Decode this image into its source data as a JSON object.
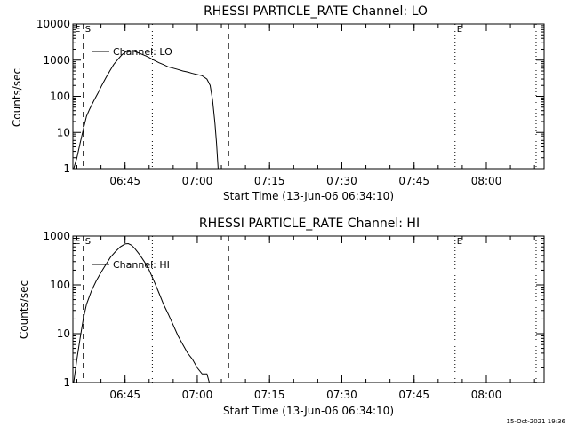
{
  "footer_text": "15-Oct-2021 19:36",
  "chart_data": [
    {
      "type": "line",
      "title": "RHESSI PARTICLE_RATE Channel: LO",
      "xlabel": "Start Time (13-Jun-06 06:34:10)",
      "ylabel": "Counts/sec",
      "yscale": "log",
      "xlim": [
        "06:34:10",
        "08:12:00"
      ],
      "ylim": [
        1,
        10000
      ],
      "x_tick_labels": [
        "06:45",
        "07:00",
        "07:15",
        "07:30",
        "07:45",
        "08:00"
      ],
      "y_tick_labels": [
        "1",
        "10",
        "100",
        "1000",
        "10000"
      ],
      "legend": "Channel: LO",
      "marker_labels": [
        "E",
        "S",
        "E"
      ],
      "markers": [
        {
          "kind": "dotted",
          "time": "06:34:10",
          "label": "E"
        },
        {
          "kind": "dashed",
          "time": "06:36:20",
          "label": "S"
        },
        {
          "kind": "dotted",
          "time": "06:50:40"
        },
        {
          "kind": "dashed",
          "time": "07:06:30"
        },
        {
          "kind": "dotted",
          "time": "07:53:30",
          "label": "E"
        },
        {
          "kind": "dotted",
          "time": "08:10:20"
        }
      ],
      "series": [
        {
          "name": "Channel: LO",
          "x": [
            "06:34:20",
            "06:35:00",
            "06:35:40",
            "06:36:20",
            "06:37:00",
            "06:37:40",
            "06:38:30",
            "06:39:20",
            "06:40:10",
            "06:41:00",
            "06:41:50",
            "06:42:40",
            "06:43:30",
            "06:44:20",
            "06:45:10",
            "06:46:00",
            "06:46:50",
            "06:47:40",
            "06:48:30",
            "06:49:20",
            "06:50:10",
            "06:51:00",
            "06:52:00",
            "06:53:00",
            "06:54:00",
            "06:55:00",
            "06:56:00",
            "06:57:00",
            "06:58:00",
            "06:59:00",
            "07:00:00",
            "07:01:00",
            "07:02:00",
            "07:02:40",
            "07:03:10",
            "07:03:40",
            "07:04:00",
            "07:04:20"
          ],
          "y": [
            1,
            2,
            5,
            12,
            28,
            45,
            75,
            120,
            200,
            320,
            500,
            760,
            1050,
            1400,
            1700,
            1800,
            1750,
            1600,
            1450,
            1300,
            1150,
            1000,
            850,
            750,
            650,
            600,
            550,
            500,
            470,
            430,
            400,
            370,
            300,
            200,
            80,
            18,
            5,
            1
          ]
        }
      ]
    },
    {
      "type": "line",
      "title": "RHESSI PARTICLE_RATE Channel: HI",
      "xlabel": "Start Time (13-Jun-06 06:34:10)",
      "ylabel": "Counts/sec",
      "yscale": "log",
      "xlim": [
        "06:34:10",
        "08:12:00"
      ],
      "ylim": [
        1,
        1000
      ],
      "x_tick_labels": [
        "06:45",
        "07:00",
        "07:15",
        "07:30",
        "07:45",
        "08:00"
      ],
      "y_tick_labels": [
        "1",
        "10",
        "100",
        "1000"
      ],
      "legend": "Channel: HI",
      "marker_labels": [
        "E",
        "S",
        "E"
      ],
      "markers": [
        {
          "kind": "dotted",
          "time": "06:34:10",
          "label": "E"
        },
        {
          "kind": "dashed",
          "time": "06:36:20",
          "label": "S"
        },
        {
          "kind": "dotted",
          "time": "06:50:40"
        },
        {
          "kind": "dashed",
          "time": "07:06:30"
        },
        {
          "kind": "dotted",
          "time": "07:53:30",
          "label": "E"
        },
        {
          "kind": "dotted",
          "time": "08:10:20"
        }
      ],
      "series": [
        {
          "name": "Channel: HI",
          "x": [
            "06:34:20",
            "06:35:00",
            "06:35:40",
            "06:36:20",
            "06:37:00",
            "06:38:00",
            "06:39:00",
            "06:40:00",
            "06:41:00",
            "06:42:00",
            "06:43:00",
            "06:44:00",
            "06:45:00",
            "06:45:40",
            "06:46:20",
            "06:47:00",
            "06:48:00",
            "06:49:00",
            "06:50:00",
            "06:51:00",
            "06:52:00",
            "06:53:00",
            "06:54:00",
            "06:55:00",
            "06:56:00",
            "06:57:00",
            "06:58:00",
            "06:59:00",
            "07:00:00",
            "07:01:00",
            "07:02:00",
            "07:02:30"
          ],
          "y": [
            1,
            3,
            8,
            20,
            40,
            75,
            120,
            180,
            260,
            370,
            480,
            600,
            690,
            700,
            650,
            560,
            420,
            300,
            200,
            120,
            70,
            40,
            25,
            15,
            9,
            6,
            4,
            3,
            2,
            1.5,
            1.5,
            1
          ]
        }
      ]
    }
  ]
}
